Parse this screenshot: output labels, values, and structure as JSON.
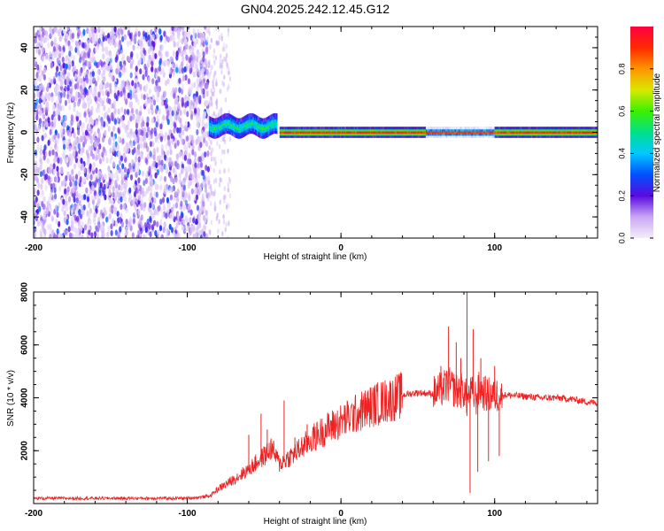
{
  "title": "GN04.2025.242.12.45.G12",
  "chart_data": [
    {
      "type": "heatmap",
      "xlabel": "Height of straight line (km)",
      "ylabel": "Frequency (Hz)",
      "xlim": [
        -200,
        167
      ],
      "ylim": [
        -50,
        50
      ],
      "xticks": [
        -200,
        -100,
        0,
        100
      ],
      "yticks": [
        -40,
        -20,
        0,
        20,
        40
      ],
      "colorbar": {
        "label": "Normalized spectral amplitude",
        "range": [
          0,
          1
        ],
        "ticks": [
          "0.0",
          "0.2",
          "0.4",
          "0.6",
          "0.8"
        ],
        "stops": [
          "#f3eef9",
          "#c9a6f4",
          "#5a0ae0",
          "#0050ff",
          "#00c8ff",
          "#00e08a",
          "#3cf000",
          "#d8e800",
          "#ff9400",
          "#ff2a00",
          "#ff0040"
        ]
      },
      "features": [
        {
          "name": "noise",
          "x_range": [
            -200,
            -86
          ],
          "y_range": [
            -50,
            50
          ],
          "amplitude": 0.2
        },
        {
          "name": "scatter",
          "x_range": [
            -86,
            -72
          ],
          "y_range": [
            -50,
            50
          ],
          "amplitude": 0.1
        },
        {
          "name": "onset band",
          "x_range": [
            -86,
            -42
          ],
          "center_hz": 3,
          "half_width_hz": 4,
          "amplitude": 0.45
        },
        {
          "name": "tone",
          "x_range": [
            -40,
            167
          ],
          "center_hz": 0,
          "half_width_hz": 2,
          "amplitude": 0.9
        }
      ]
    },
    {
      "type": "line",
      "xlabel": "Height of straight line (km)",
      "ylabel": "SNR (10 * v/v)",
      "xlim": [
        -200,
        167
      ],
      "ylim": [
        0,
        8000
      ],
      "xticks": [
        -200,
        -100,
        0,
        100
      ],
      "yticks": [
        2000,
        4000,
        6000,
        8000
      ],
      "color": "#ee2222",
      "x": [
        -200,
        -150,
        -100,
        -90,
        -85,
        -80,
        -70,
        -60,
        -50,
        -45,
        -40,
        -30,
        -20,
        -10,
        0,
        10,
        20,
        30,
        40,
        50,
        60,
        65,
        70,
        75,
        80,
        82,
        85,
        88,
        90,
        95,
        100,
        110,
        120,
        130,
        140,
        150,
        160,
        167
      ],
      "y": [
        200,
        200,
        200,
        250,
        300,
        550,
        900,
        1300,
        1800,
        2100,
        1500,
        1900,
        2400,
        2800,
        3100,
        3400,
        3700,
        3900,
        4100,
        4200,
        4150,
        4300,
        4500,
        4250,
        4300,
        3900,
        4200,
        4000,
        4350,
        4100,
        4100,
        4100,
        4050,
        4000,
        4000,
        3950,
        3850,
        3800
      ],
      "spikes": [
        {
          "x": -60,
          "y": 2600
        },
        {
          "x": -52,
          "y": 3400
        },
        {
          "x": -48,
          "y": 2800
        },
        {
          "x": -37,
          "y": 3900
        },
        {
          "x": -30,
          "y": 2500
        },
        {
          "x": -22,
          "y": 3000
        },
        {
          "x": 65,
          "y": 5200
        },
        {
          "x": 70,
          "y": 6700
        },
        {
          "x": 75,
          "y": 6100
        },
        {
          "x": 78,
          "y": 5500
        },
        {
          "x": 82,
          "y": 8000
        },
        {
          "x": 84,
          "y": 400
        },
        {
          "x": 86,
          "y": 6600
        },
        {
          "x": 89,
          "y": 1200
        },
        {
          "x": 91,
          "y": 5500
        },
        {
          "x": 96,
          "y": 1600
        },
        {
          "x": 100,
          "y": 5200
        },
        {
          "x": 103,
          "y": 1800
        }
      ]
    }
  ]
}
